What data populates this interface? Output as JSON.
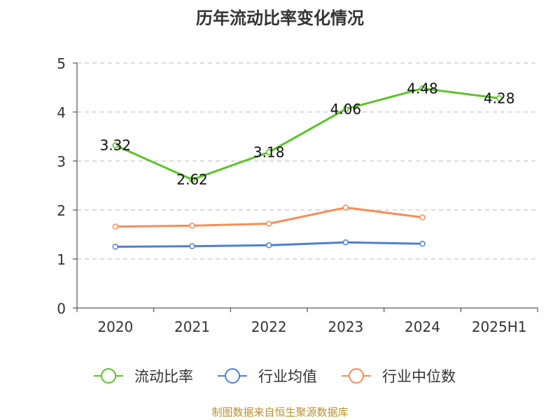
{
  "title": "历年流动比率变化情况",
  "source": "制图数据来自恒生聚源数据库",
  "chart_data": {
    "type": "line",
    "categories": [
      "2020",
      "2021",
      "2022",
      "2023",
      "2024",
      "2025H1"
    ],
    "ylim": [
      0,
      5
    ],
    "yticks": [
      "0",
      "1",
      "2",
      "3",
      "4",
      "5"
    ],
    "grid": true,
    "legend": "bottom",
    "series": [
      {
        "name": "流动比率",
        "color": "#5cc228",
        "values": [
          3.32,
          2.62,
          3.18,
          4.06,
          4.48,
          4.28
        ],
        "labels": [
          "3.32",
          "2.62",
          "3.18",
          "4.06",
          "4.48",
          "4.28"
        ]
      },
      {
        "name": "行业均值",
        "color": "#4e7fd6",
        "values": [
          1.25,
          1.26,
          1.28,
          1.34,
          1.31,
          null
        ]
      },
      {
        "name": "行业中位数",
        "color": "#f58e57",
        "values": [
          1.66,
          1.68,
          1.72,
          2.05,
          1.85,
          null
        ]
      }
    ]
  }
}
